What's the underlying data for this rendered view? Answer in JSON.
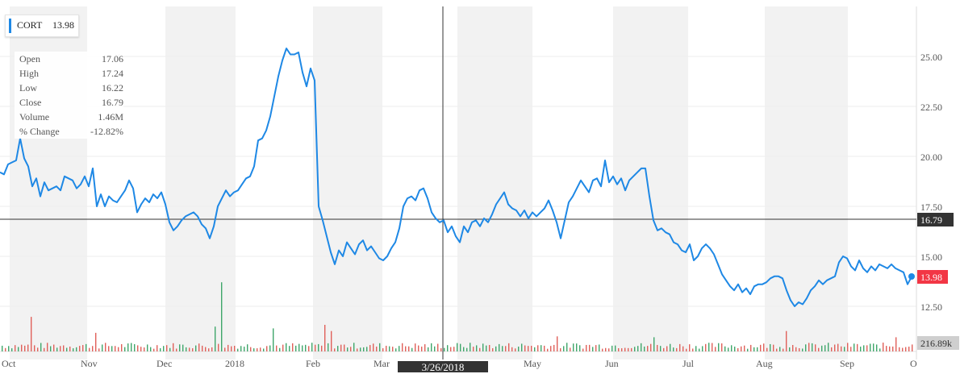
{
  "tooltip": {
    "symbol": "CORT",
    "price": "13.98"
  },
  "ohlc": [
    {
      "label": "Open",
      "value": "17.06"
    },
    {
      "label": "High",
      "value": "17.24"
    },
    {
      "label": "Low",
      "value": "16.22"
    },
    {
      "label": "Close",
      "value": "16.79"
    },
    {
      "label": "Volume",
      "value": "1.46M"
    },
    {
      "label": "% Change",
      "value": "-12.82%"
    }
  ],
  "crosshair": {
    "date": "3/26/2018",
    "price_label": "16.79"
  },
  "last_price_label": "13.98",
  "volume_label": "216.89k",
  "colors": {
    "line": "#1e88e5",
    "band": "#f2f2f2",
    "last_price_flag": "#f23645",
    "crosshair_flag": "#333333",
    "volume_up": "#3fa66a",
    "volume_down": "#e0605a",
    "volume_label_bg": "#cfcfcf"
  },
  "chart_data": {
    "type": "line",
    "series": [
      {
        "name": "CORT"
      }
    ],
    "x_tick_labels": [
      "Oct",
      "Nov",
      "Dec",
      "2018",
      "Feb",
      "Mar",
      "May",
      "Jun",
      "Jul",
      "Aug",
      "Sep",
      "O"
    ],
    "y_tick_labels": [
      "25.00",
      "22.50",
      "20.00",
      "17.50",
      "15.00",
      "12.50"
    ],
    "ylim": [
      11.1,
      27.0
    ],
    "price_points": [
      [
        0,
        19.2
      ],
      [
        5,
        19.1
      ],
      [
        10,
        19.6
      ],
      [
        15,
        19.7
      ],
      [
        20,
        19.8
      ],
      [
        25,
        20.9
      ],
      [
        30,
        19.9
      ],
      [
        35,
        19.5
      ],
      [
        40,
        18.5
      ],
      [
        45,
        18.9
      ],
      [
        50,
        18.0
      ],
      [
        55,
        18.7
      ],
      [
        60,
        18.3
      ],
      [
        65,
        18.4
      ],
      [
        70,
        18.5
      ],
      [
        75,
        18.3
      ],
      [
        80,
        19.0
      ],
      [
        85,
        18.9
      ],
      [
        90,
        18.8
      ],
      [
        95,
        18.4
      ],
      [
        100,
        18.6
      ],
      [
        105,
        19.0
      ],
      [
        110,
        18.5
      ],
      [
        115,
        19.4
      ],
      [
        120,
        17.5
      ],
      [
        125,
        18.1
      ],
      [
        130,
        17.5
      ],
      [
        135,
        18.0
      ],
      [
        140,
        17.8
      ],
      [
        145,
        17.7
      ],
      [
        150,
        18.0
      ],
      [
        155,
        18.3
      ],
      [
        160,
        18.8
      ],
      [
        165,
        18.4
      ],
      [
        170,
        17.2
      ],
      [
        175,
        17.6
      ],
      [
        180,
        17.9
      ],
      [
        185,
        17.7
      ],
      [
        190,
        18.1
      ],
      [
        195,
        17.9
      ],
      [
        200,
        18.2
      ],
      [
        205,
        17.6
      ],
      [
        210,
        16.7
      ],
      [
        215,
        16.3
      ],
      [
        220,
        16.5
      ],
      [
        225,
        16.8
      ],
      [
        230,
        17.0
      ],
      [
        235,
        17.1
      ],
      [
        240,
        17.2
      ],
      [
        245,
        17.0
      ],
      [
        250,
        16.6
      ],
      [
        255,
        16.4
      ],
      [
        260,
        15.9
      ],
      [
        265,
        16.5
      ],
      [
        270,
        17.5
      ],
      [
        275,
        17.9
      ],
      [
        280,
        18.3
      ],
      [
        285,
        18.0
      ],
      [
        290,
        18.2
      ],
      [
        295,
        18.3
      ],
      [
        300,
        18.6
      ],
      [
        305,
        18.9
      ],
      [
        310,
        19.0
      ],
      [
        315,
        19.5
      ],
      [
        320,
        20.8
      ],
      [
        325,
        20.9
      ],
      [
        330,
        21.3
      ],
      [
        335,
        22.0
      ],
      [
        340,
        23.0
      ],
      [
        345,
        24.0
      ],
      [
        350,
        24.8
      ],
      [
        355,
        25.4
      ],
      [
        360,
        25.1
      ],
      [
        365,
        25.1
      ],
      [
        370,
        25.2
      ],
      [
        375,
        24.2
      ],
      [
        380,
        23.5
      ],
      [
        385,
        24.4
      ],
      [
        390,
        23.8
      ],
      [
        395,
        17.5
      ],
      [
        400,
        16.8
      ],
      [
        405,
        16.0
      ],
      [
        410,
        15.2
      ],
      [
        415,
        14.6
      ],
      [
        420,
        15.3
      ],
      [
        425,
        15.0
      ],
      [
        430,
        15.7
      ],
      [
        435,
        15.4
      ],
      [
        440,
        15.1
      ],
      [
        445,
        15.6
      ],
      [
        450,
        15.8
      ],
      [
        455,
        15.3
      ],
      [
        460,
        15.5
      ],
      [
        465,
        15.2
      ],
      [
        470,
        14.9
      ],
      [
        475,
        14.8
      ],
      [
        480,
        15.0
      ],
      [
        485,
        15.4
      ],
      [
        490,
        15.7
      ],
      [
        495,
        16.4
      ],
      [
        500,
        17.5
      ],
      [
        505,
        17.9
      ],
      [
        510,
        18.0
      ],
      [
        515,
        17.8
      ],
      [
        520,
        18.3
      ],
      [
        525,
        18.4
      ],
      [
        530,
        17.9
      ],
      [
        535,
        17.2
      ],
      [
        540,
        16.9
      ],
      [
        545,
        16.7
      ],
      [
        550,
        16.8
      ],
      [
        555,
        16.2
      ],
      [
        560,
        16.5
      ],
      [
        565,
        16.0
      ],
      [
        570,
        15.7
      ],
      [
        575,
        16.5
      ],
      [
        580,
        16.2
      ],
      [
        585,
        16.7
      ],
      [
        590,
        16.8
      ],
      [
        595,
        16.5
      ],
      [
        600,
        16.9
      ],
      [
        605,
        16.7
      ],
      [
        610,
        17.1
      ],
      [
        615,
        17.6
      ],
      [
        620,
        17.9
      ],
      [
        625,
        18.2
      ],
      [
        630,
        17.6
      ],
      [
        635,
        17.4
      ],
      [
        640,
        17.3
      ],
      [
        645,
        17.0
      ],
      [
        650,
        17.3
      ],
      [
        655,
        16.9
      ],
      [
        660,
        17.2
      ],
      [
        665,
        17.0
      ],
      [
        670,
        17.2
      ],
      [
        675,
        17.4
      ],
      [
        680,
        17.8
      ],
      [
        685,
        17.3
      ],
      [
        690,
        16.7
      ],
      [
        695,
        15.9
      ],
      [
        700,
        16.8
      ],
      [
        705,
        17.7
      ],
      [
        710,
        18.0
      ],
      [
        715,
        18.4
      ],
      [
        720,
        18.8
      ],
      [
        725,
        18.5
      ],
      [
        730,
        18.2
      ],
      [
        735,
        18.8
      ],
      [
        740,
        18.9
      ],
      [
        745,
        18.5
      ],
      [
        750,
        19.8
      ],
      [
        755,
        18.7
      ],
      [
        760,
        19.0
      ],
      [
        765,
        18.6
      ],
      [
        770,
        18.9
      ],
      [
        775,
        18.3
      ],
      [
        780,
        18.8
      ],
      [
        785,
        19.0
      ],
      [
        790,
        19.2
      ],
      [
        795,
        19.4
      ],
      [
        800,
        19.4
      ],
      [
        805,
        18.0
      ],
      [
        810,
        16.8
      ],
      [
        815,
        16.3
      ],
      [
        820,
        16.4
      ],
      [
        825,
        16.2
      ],
      [
        830,
        16.1
      ],
      [
        835,
        15.7
      ],
      [
        840,
        15.6
      ],
      [
        845,
        15.3
      ],
      [
        850,
        15.2
      ],
      [
        855,
        15.6
      ],
      [
        860,
        14.8
      ],
      [
        865,
        15.0
      ],
      [
        870,
        15.4
      ],
      [
        875,
        15.6
      ],
      [
        880,
        15.4
      ],
      [
        885,
        15.1
      ],
      [
        890,
        14.6
      ],
      [
        895,
        14.1
      ],
      [
        900,
        13.8
      ],
      [
        905,
        13.5
      ],
      [
        910,
        13.3
      ],
      [
        915,
        13.6
      ],
      [
        920,
        13.2
      ],
      [
        925,
        13.4
      ],
      [
        930,
        13.1
      ],
      [
        935,
        13.5
      ],
      [
        940,
        13.6
      ],
      [
        945,
        13.6
      ],
      [
        950,
        13.7
      ],
      [
        955,
        13.9
      ],
      [
        960,
        14.0
      ],
      [
        965,
        14.0
      ],
      [
        970,
        13.9
      ],
      [
        975,
        13.3
      ],
      [
        980,
        12.8
      ],
      [
        985,
        12.5
      ],
      [
        990,
        12.7
      ],
      [
        995,
        12.6
      ],
      [
        1000,
        12.9
      ],
      [
        1005,
        13.3
      ],
      [
        1010,
        13.5
      ],
      [
        1015,
        13.8
      ],
      [
        1020,
        13.6
      ],
      [
        1025,
        13.8
      ],
      [
        1030,
        13.9
      ],
      [
        1035,
        14.0
      ],
      [
        1040,
        14.7
      ],
      [
        1045,
        15.0
      ],
      [
        1050,
        14.9
      ],
      [
        1055,
        14.5
      ],
      [
        1060,
        14.3
      ],
      [
        1065,
        14.8
      ],
      [
        1070,
        14.4
      ],
      [
        1075,
        14.2
      ],
      [
        1080,
        14.5
      ],
      [
        1085,
        14.3
      ],
      [
        1090,
        14.6
      ],
      [
        1095,
        14.5
      ],
      [
        1100,
        14.4
      ],
      [
        1105,
        14.6
      ],
      [
        1110,
        14.4
      ],
      [
        1115,
        14.3
      ],
      [
        1120,
        14.2
      ],
      [
        1125,
        13.6
      ],
      [
        1130,
        13.98
      ]
    ],
    "volume_bars": [
      {
        "x": 37,
        "v": 0.39,
        "dir": "down"
      },
      {
        "x": 118,
        "v": 0.21,
        "dir": "down"
      },
      {
        "x": 266,
        "v": 0.28,
        "dir": "up"
      },
      {
        "x": 275,
        "v": 0.78,
        "dir": "up"
      },
      {
        "x": 338,
        "v": 0.26,
        "dir": "up"
      },
      {
        "x": 396,
        "v": 0.44,
        "dir": "down"
      },
      {
        "x": 402,
        "v": 0.3,
        "dir": "down"
      },
      {
        "x": 410,
        "v": 0.23,
        "dir": "down"
      },
      {
        "x": 520,
        "v": 0.18,
        "dir": "up"
      },
      {
        "x": 690,
        "v": 0.17,
        "dir": "down"
      },
      {
        "x": 808,
        "v": 0.19,
        "dir": "down"
      },
      {
        "x": 810,
        "v": 0.16,
        "dir": "up"
      },
      {
        "x": 975,
        "v": 0.23,
        "dir": "down"
      },
      {
        "x": 1110,
        "v": 0.16,
        "dir": "down"
      }
    ]
  }
}
